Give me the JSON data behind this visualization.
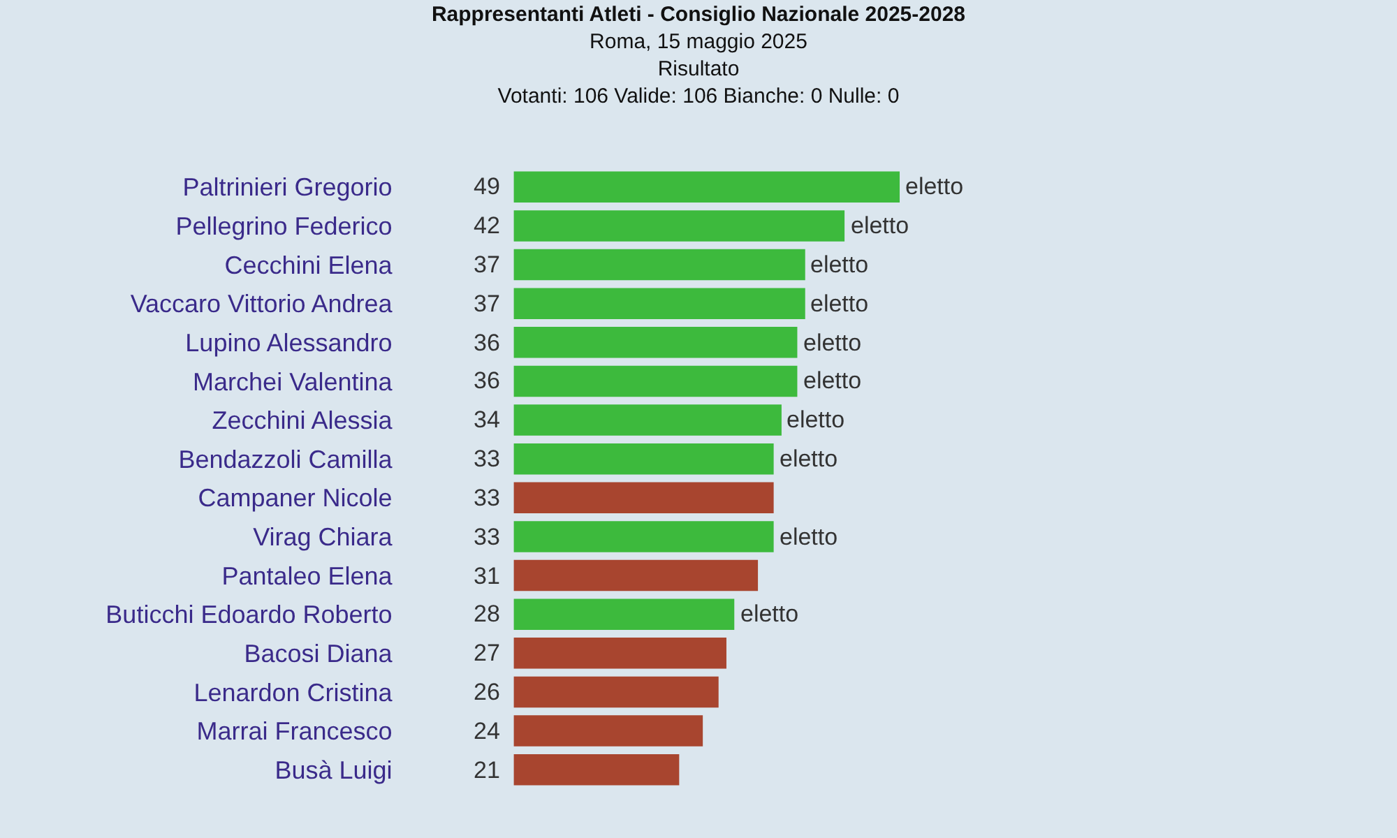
{
  "chart_data": {
    "type": "bar",
    "orientation": "horizontal",
    "title": "Rappresentanti Atleti - Consiglio Nazionale 2025-2028",
    "subtitle": "Roma, 15 maggio 2025\nRisultato\nVotanti: 106 Valide: 106 Bianche: 0 Nulle: 0",
    "categories": [
      "Paltrinieri Gregorio",
      "Pellegrino Federico",
      "Cecchini Elena",
      "Vaccaro Vittorio Andrea",
      "Lupino Alessandro",
      "Marchei Valentina",
      "Zecchini Alessia",
      "Bendazzoli Camilla",
      "Campaner Nicole",
      "Virag Chiara",
      "Pantaleo Elena",
      "Buticchi Edoardo Roberto",
      "Bacosi Diana",
      "Lenardon Cristina",
      "Marrai Francesco",
      "Busà Luigi"
    ],
    "values": [
      49,
      42,
      37,
      37,
      36,
      36,
      34,
      33,
      33,
      33,
      31,
      28,
      27,
      26,
      24,
      21
    ],
    "colors": [
      "#3dba3d",
      "#3dba3d",
      "#3dba3d",
      "#3dba3d",
      "#3dba3d",
      "#3dba3d",
      "#3dba3d",
      "#3dba3d",
      "#a8452f",
      "#3dba3d",
      "#a8452f",
      "#3dba3d",
      "#a8452f",
      "#a8452f",
      "#a8452f",
      "#a8452f"
    ],
    "data_labels": true,
    "tick_labels": "y",
    "grid": false,
    "annotations": [
      {
        "text": "eletto",
        "x": 49,
        "y": "Paltrinieri Gregorio"
      },
      {
        "text": "eletto",
        "x": 42,
        "y": "Pellegrino Federico"
      },
      {
        "text": "eletto",
        "x": 37,
        "y": "Cecchini Elena"
      },
      {
        "text": "eletto",
        "x": 37,
        "y": "Vaccaro Vittorio Andrea"
      },
      {
        "text": "eletto",
        "x": 36,
        "y": "Lupino Alessandro"
      },
      {
        "text": "eletto",
        "x": 36,
        "y": "Marchei Valentina"
      },
      {
        "text": "eletto",
        "x": 34,
        "y": "Zecchini Alessia"
      },
      {
        "text": "eletto",
        "x": 33,
        "y": "Bendazzoli Camilla"
      },
      {
        "text": "eletto",
        "x": 33,
        "y": "Virag Chiara"
      },
      {
        "text": "eletto",
        "x": 28,
        "y": "Buticchi Edoardo Roberto"
      }
    ]
  }
}
